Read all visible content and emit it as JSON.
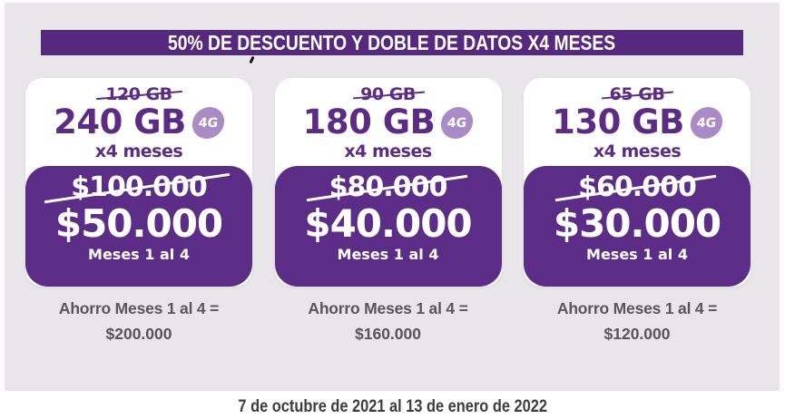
{
  "banner": {
    "text": "50% DE DESCUENTO Y DOBLE DE DATOS X4 MESES"
  },
  "cards": [
    {
      "old_data": "120 GB",
      "new_data": "240 GB",
      "badge": "4G",
      "duration": "x4 meses",
      "old_price": "$100.000",
      "new_price": "$50.000",
      "price_period": "Meses 1 al 4",
      "savings_label": "Ahorro Meses 1 al 4 =",
      "savings_value": "$200.000"
    },
    {
      "old_data": "90 GB",
      "new_data": "180 GB",
      "badge": "4G",
      "duration": "x4 meses",
      "old_price": "$80.000",
      "new_price": "$40.000",
      "price_period": "Meses 1 al 4",
      "savings_label": "Ahorro Meses 1 al 4 =",
      "savings_value": "$160.000"
    },
    {
      "old_data": "65 GB",
      "new_data": "130 GB",
      "badge": "4G",
      "duration": "x4 meses",
      "old_price": "$60.000",
      "new_price": "$30.000",
      "price_period": "Meses 1 al 4",
      "savings_label": "Ahorro Meses 1 al 4 =",
      "savings_value": "$120.000"
    }
  ],
  "footer": {
    "date_range": "7 de octubre de 2021 al 13 de enero de 2022"
  },
  "colors": {
    "banner_purple": "#56297f",
    "price_box_purple": "#5b2d86",
    "text_purple": "#5c2c84",
    "badge_light_purple": "#a98cc6",
    "background_gray": "#e8e6e8",
    "savings_text_gray": "#575757",
    "footer_text_gray": "#3d3d3d"
  }
}
